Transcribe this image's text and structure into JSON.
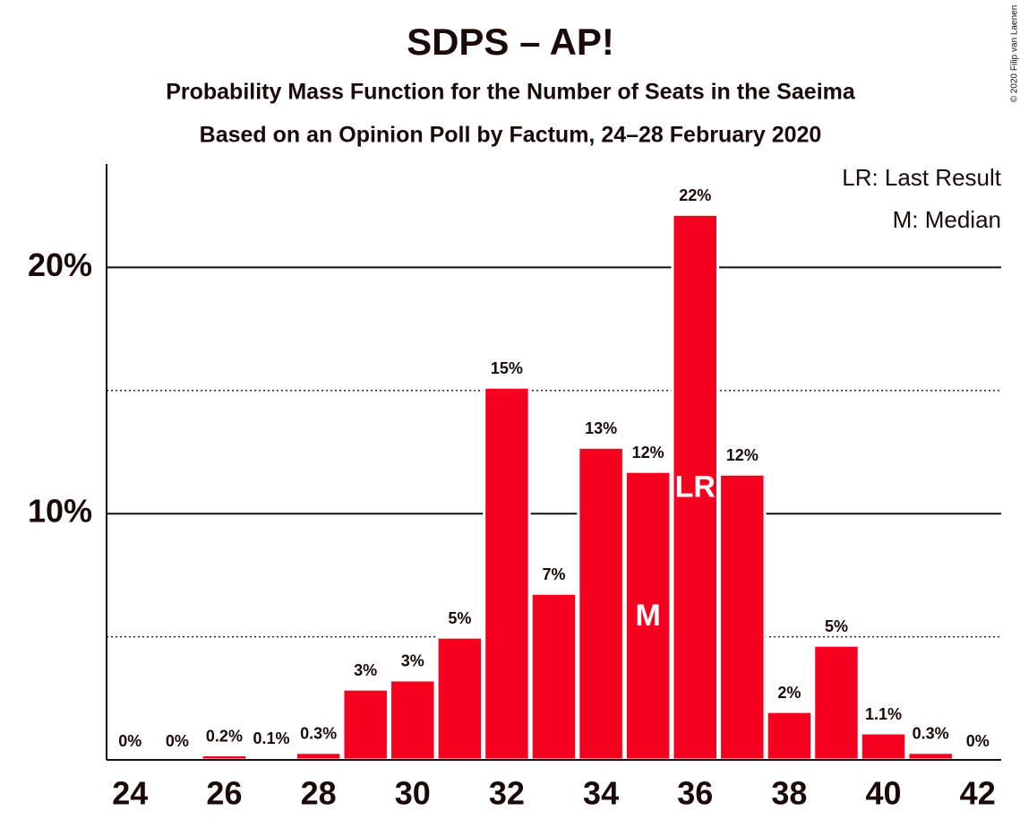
{
  "chart_data": {
    "type": "bar",
    "title": "SDPS – AP!",
    "subtitle": "Probability Mass Function for the Number of Seats in the Saeima",
    "subtitle2": "Based on an Opinion Poll by Factum, 24–28 February 2020",
    "copyright": "© 2020 Filip van Laenen",
    "legend": [
      "LR: Last Result",
      "M: Median"
    ],
    "x": [
      24,
      25,
      26,
      27,
      28,
      29,
      30,
      31,
      32,
      33,
      34,
      35,
      36,
      37,
      38,
      39,
      40,
      41,
      42
    ],
    "values": [
      0,
      0,
      0.2,
      0.1,
      0.3,
      2.87,
      3.24,
      4.98,
      15.13,
      6.76,
      12.69,
      11.71,
      22.15,
      11.6,
      1.96,
      4.65,
      1.09,
      0.3,
      0
    ],
    "value_labels": [
      "0%",
      "0%",
      "0.2%",
      "0.1%",
      "0.3%",
      "3%",
      "3%",
      "5%",
      "15%",
      "7%",
      "13%",
      "12%",
      "22%",
      "12%",
      "2%",
      "5%",
      "1.1%",
      "0.3%",
      "0%"
    ],
    "markers": [
      {
        "label": "M",
        "x": 35
      },
      {
        "label": "LR",
        "x": 36
      }
    ],
    "color": "#f5001f",
    "xlim": [
      23.5,
      42.5
    ],
    "xticks": [
      24,
      26,
      28,
      30,
      32,
      34,
      36,
      38,
      40,
      42
    ],
    "ylim": [
      0,
      24.2
    ],
    "yticks": [
      {
        "value": 10,
        "label": "10%"
      },
      {
        "value": 20,
        "label": "20%"
      }
    ],
    "minor_yticks": [
      5,
      15
    ],
    "grid": true
  }
}
